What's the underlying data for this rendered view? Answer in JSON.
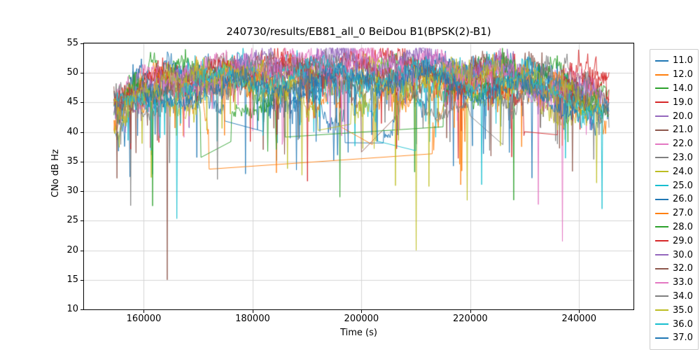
{
  "chart_data": {
    "type": "line",
    "title": "240730/results/EB81_all_0 BeiDou B1(BPSK(2)-B1)",
    "xlabel": "Time (s)",
    "ylabel": "CNo dB Hz",
    "xlim": [
      149000,
      250000
    ],
    "ylim": [
      10,
      55
    ],
    "xticks": [
      160000,
      180000,
      200000,
      220000,
      240000
    ],
    "yticks": [
      10,
      15,
      20,
      25,
      30,
      35,
      40,
      45,
      50,
      55
    ],
    "grid": true,
    "grid_color": "#d4d4d4",
    "spine_color": "#000000",
    "legend_position": "right",
    "series": [
      {
        "name": "11.0",
        "color": "#1f77b4",
        "seed": 11,
        "base": 37,
        "peak": 50,
        "passes": [
          [
            154500,
            197000
          ],
          [
            204000,
            245500
          ]
        ]
      },
      {
        "name": "12.0",
        "color": "#ff7f0e",
        "seed": 12,
        "base": 36,
        "peak": 49,
        "passes": [
          [
            154500,
            172000
          ],
          [
            213000,
            245000
          ]
        ]
      },
      {
        "name": "14.0",
        "color": "#2ca02c",
        "seed": 14,
        "base": 36,
        "peak": 51,
        "passes": [
          [
            154500,
            170500
          ],
          [
            176000,
            245500
          ]
        ],
        "dips": [
          [
            196000,
            29
          ]
        ]
      },
      {
        "name": "19.0",
        "color": "#d62728",
        "seed": 19,
        "base": 40,
        "peak": 51,
        "passes": [
          [
            154500,
            245500
          ]
        ]
      },
      {
        "name": "20.0",
        "color": "#9467bd",
        "seed": 20,
        "base": 39,
        "peak": 52.5,
        "passes": [
          [
            156000,
            244000
          ]
        ]
      },
      {
        "name": "21.0",
        "color": "#8c564b",
        "seed": 21,
        "base": 38,
        "peak": 51,
        "passes": [
          [
            154500,
            200000
          ],
          [
            206000,
            245500
          ]
        ],
        "dips": [
          [
            164300,
            15
          ]
        ]
      },
      {
        "name": "22.0",
        "color": "#e377c2",
        "seed": 22,
        "base": 40,
        "peak": 52,
        "passes": [
          [
            155000,
            243000
          ]
        ]
      },
      {
        "name": "23.0",
        "color": "#7f7f7f",
        "seed": 23,
        "base": 39,
        "peak": 50,
        "passes": [
          [
            154500,
            244000
          ]
        ]
      },
      {
        "name": "24.0",
        "color": "#bcbd22",
        "seed": 24,
        "base": 38,
        "peak": 50,
        "passes": [
          [
            154500,
            243500
          ]
        ],
        "dips": [
          [
            210000,
            20
          ]
        ]
      },
      {
        "name": "25.0",
        "color": "#17becf",
        "seed": 25,
        "base": 39,
        "peak": 51,
        "passes": [
          [
            155000,
            203000
          ],
          [
            210000,
            241000
          ]
        ]
      },
      {
        "name": "26.0",
        "color": "#1f77b4",
        "seed": 26,
        "base": 37,
        "peak": 50,
        "passes": [
          [
            154500,
            175000
          ],
          [
            182000,
            245500
          ]
        ]
      },
      {
        "name": "27.0",
        "color": "#ff7f0e",
        "seed": 27,
        "base": 37,
        "peak": 49,
        "passes": [
          [
            154500,
            196000
          ],
          [
            202000,
            244000
          ]
        ]
      },
      {
        "name": "28.0",
        "color": "#2ca02c",
        "seed": 28,
        "base": 36,
        "peak": 50,
        "passes": [
          [
            156000,
            186000
          ],
          [
            215000,
            245500
          ]
        ]
      },
      {
        "name": "29.0",
        "color": "#d62728",
        "seed": 29,
        "base": 38,
        "peak": 51,
        "passes": [
          [
            154500,
            230000
          ],
          [
            236000,
            245500
          ]
        ]
      },
      {
        "name": "30.0",
        "color": "#9467bd",
        "seed": 30,
        "base": 40,
        "peak": 52,
        "passes": [
          [
            154500,
            244500
          ]
        ]
      },
      {
        "name": "32.0",
        "color": "#8c564b",
        "seed": 32,
        "base": 39,
        "peak": 50,
        "passes": [
          [
            154500,
            242000
          ]
        ]
      },
      {
        "name": "33.0",
        "color": "#e377c2",
        "seed": 33,
        "base": 37,
        "peak": 52,
        "passes": [
          [
            158000,
            237500
          ]
        ],
        "dips": [
          [
            237000,
            21.5
          ]
        ]
      },
      {
        "name": "34.0",
        "color": "#7f7f7f",
        "seed": 34,
        "base": 38,
        "peak": 50,
        "passes": [
          [
            154500,
            220000
          ],
          [
            226000,
            245500
          ]
        ]
      },
      {
        "name": "35.0",
        "color": "#bcbd22",
        "seed": 35,
        "base": 37,
        "peak": 50,
        "passes": [
          [
            154500,
            192000
          ],
          [
            198000,
            244000
          ]
        ]
      },
      {
        "name": "36.0",
        "color": "#17becf",
        "seed": 36,
        "base": 38,
        "peak": 50,
        "passes": [
          [
            155000,
            244500
          ]
        ],
        "dips": [
          [
            244200,
            27
          ]
        ]
      },
      {
        "name": "37.0",
        "color": "#1f77b4",
        "seed": 37,
        "base": 37,
        "peak": 49,
        "passes": [
          [
            160000,
            240000
          ]
        ]
      }
    ]
  }
}
